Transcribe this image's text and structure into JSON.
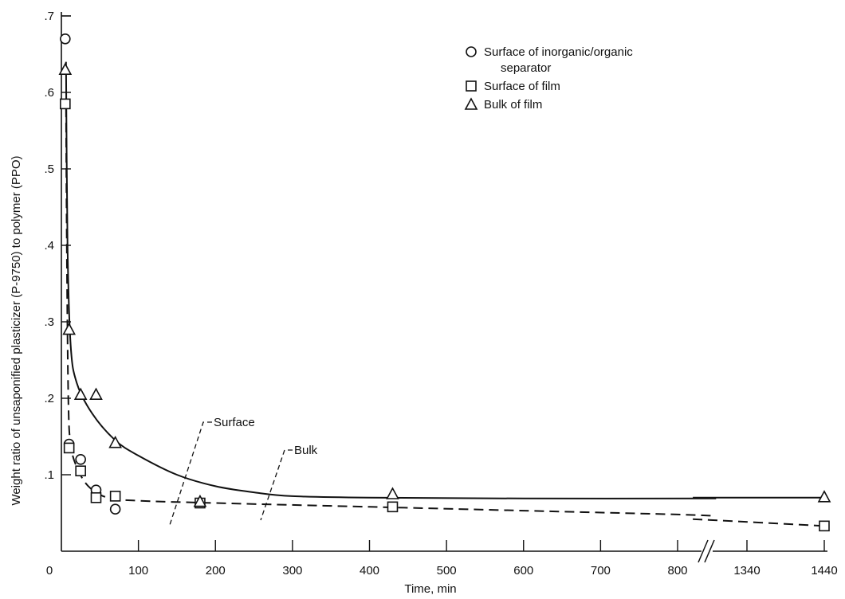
{
  "chart_data": {
    "type": "scatter",
    "title": "",
    "xlabel": "Time, min",
    "ylabel": "Weight ratio of unsaponified plasticizer (P-9750) to polymer (PPO)",
    "x_ticks": [
      "0",
      "100",
      "200",
      "300",
      "400",
      "500",
      "600",
      "700",
      "800",
      "1340",
      "1440"
    ],
    "y_ticks": [
      ".1",
      ".2",
      ".3",
      ".4",
      ".5",
      ".6",
      ".7"
    ],
    "ylim": [
      0,
      0.7
    ],
    "x_axis_break": {
      "between": [
        850,
        1270
      ]
    },
    "grid": false,
    "legend_position": "top-right",
    "legend": [
      {
        "marker": "circle",
        "lines": [
          "Surface of inorganic/organic",
          "separator"
        ]
      },
      {
        "marker": "square",
        "lines": [
          "Surface of film"
        ]
      },
      {
        "marker": "triangle",
        "lines": [
          "Bulk of film"
        ]
      }
    ],
    "series": [
      {
        "marker": "circle",
        "points": [
          [
            5,
            0.67
          ],
          [
            10,
            0.14
          ],
          [
            25,
            0.12
          ],
          [
            45,
            0.08
          ],
          [
            70,
            0.055
          ]
        ]
      },
      {
        "marker": "square",
        "points": [
          [
            5,
            0.585
          ],
          [
            10,
            0.135
          ],
          [
            25,
            0.105
          ],
          [
            45,
            0.07
          ],
          [
            70,
            0.072
          ],
          [
            180,
            0.063
          ],
          [
            430,
            0.058
          ],
          [
            1440,
            0.033
          ]
        ]
      },
      {
        "marker": "triangle",
        "points": [
          [
            5,
            0.63
          ],
          [
            10,
            0.29
          ],
          [
            25,
            0.205
          ],
          [
            45,
            0.205
          ],
          [
            70,
            0.142
          ],
          [
            180,
            0.065
          ],
          [
            430,
            0.075
          ],
          [
            1440,
            0.071
          ]
        ]
      }
    ],
    "curves": [
      {
        "label": "Bulk",
        "style": "solid",
        "points": [
          [
            6,
            0.64
          ],
          [
            8,
            0.4
          ],
          [
            12,
            0.27
          ],
          [
            20,
            0.22
          ],
          [
            40,
            0.18
          ],
          [
            70,
            0.145
          ],
          [
            100,
            0.125
          ],
          [
            150,
            0.1
          ],
          [
            200,
            0.085
          ],
          [
            250,
            0.077
          ],
          [
            300,
            0.072
          ],
          [
            400,
            0.07
          ],
          [
            600,
            0.069
          ],
          [
            850,
            0.069
          ]
        ],
        "continuation": [
          [
            1270,
            0.07
          ],
          [
            1440,
            0.07
          ]
        ]
      },
      {
        "label": "Surface",
        "style": "dashed",
        "points": [
          [
            6,
            0.58
          ],
          [
            7,
            0.4
          ],
          [
            9,
            0.2
          ],
          [
            12,
            0.14
          ],
          [
            20,
            0.11
          ],
          [
            35,
            0.085
          ],
          [
            60,
            0.07
          ],
          [
            100,
            0.066
          ],
          [
            200,
            0.063
          ],
          [
            400,
            0.058
          ],
          [
            600,
            0.053
          ],
          [
            800,
            0.048
          ],
          [
            850,
            0.046
          ]
        ],
        "continuation": [
          [
            1270,
            0.042
          ],
          [
            1440,
            0.033
          ]
        ]
      }
    ]
  }
}
